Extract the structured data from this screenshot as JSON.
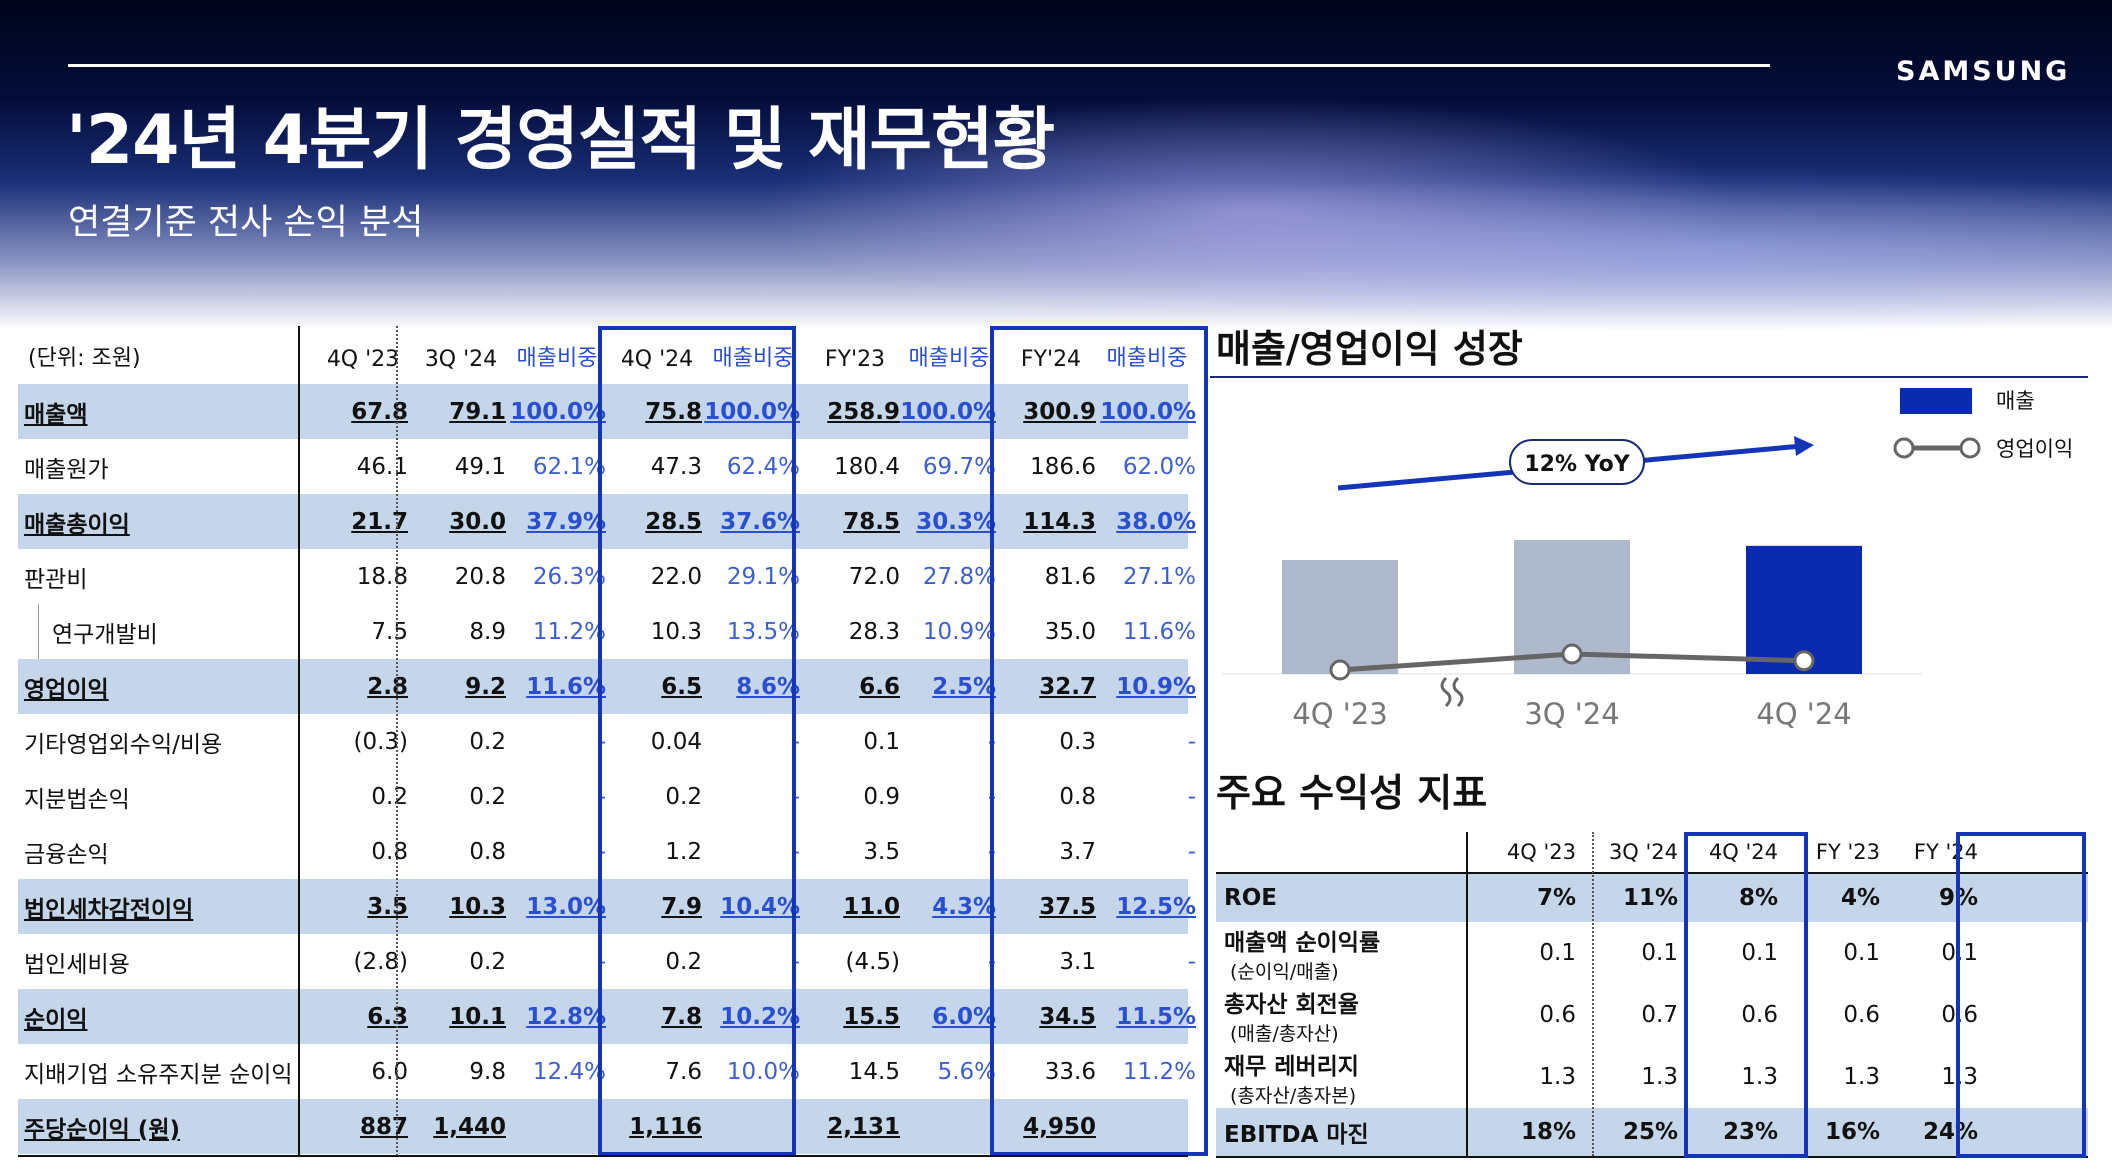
{
  "header": {
    "title": "'24년 4분기 경영실적 및 재무현황",
    "subtitle": "연결기준 전사 손익 분석",
    "logo": "SAMSUNG"
  },
  "main_table": {
    "unit_label": "(단위: 조원)",
    "columns": [
      "4Q '23",
      "3Q '24",
      "매출비중",
      "4Q '24",
      "매출비중",
      "FY'23",
      "매출비중",
      "FY'24",
      "매출비중"
    ],
    "rows": [
      {
        "label": "매출액",
        "highlight": true,
        "values": [
          "67.8",
          "79.1",
          "100.0%",
          "75.8",
          "100.0%",
          "258.9",
          "100.0%",
          "300.9",
          "100.0%"
        ]
      },
      {
        "label": "매출원가",
        "highlight": false,
        "values": [
          "46.1",
          "49.1",
          "62.1%",
          "47.3",
          "62.4%",
          "180.4",
          "69.7%",
          "186.6",
          "62.0%"
        ]
      },
      {
        "label": "매출총이익",
        "highlight": true,
        "values": [
          "21.7",
          "30.0",
          "37.9%",
          "28.5",
          "37.6%",
          "78.5",
          "30.3%",
          "114.3",
          "38.0%"
        ]
      },
      {
        "label": "판관비",
        "highlight": false,
        "values": [
          "18.8",
          "20.8",
          "26.3%",
          "22.0",
          "29.1%",
          "72.0",
          "27.8%",
          "81.6",
          "27.1%"
        ]
      },
      {
        "label": "연구개발비",
        "highlight": false,
        "sub": true,
        "values": [
          "7.5",
          "8.9",
          "11.2%",
          "10.3",
          "13.5%",
          "28.3",
          "10.9%",
          "35.0",
          "11.6%"
        ]
      },
      {
        "label": "영업이익",
        "highlight": true,
        "values": [
          "2.8",
          "9.2",
          "11.6%",
          "6.5",
          "8.6%",
          "6.6",
          "2.5%",
          "32.7",
          "10.9%"
        ]
      },
      {
        "label": "기타영업외수익/비용",
        "highlight": false,
        "values": [
          "(0.3)",
          "0.2",
          "-",
          "0.04",
          "-",
          "0.1",
          "-",
          "0.3",
          "-"
        ]
      },
      {
        "label": "지분법손익",
        "highlight": false,
        "values": [
          "0.2",
          "0.2",
          "-",
          "0.2",
          "-",
          "0.9",
          "-",
          "0.8",
          "-"
        ]
      },
      {
        "label": "금융손익",
        "highlight": false,
        "values": [
          "0.8",
          "0.8",
          "-",
          "1.2",
          "-",
          "3.5",
          "-",
          "3.7",
          "-"
        ]
      },
      {
        "label": "법인세차감전이익",
        "highlight": true,
        "values": [
          "3.5",
          "10.3",
          "13.0%",
          "7.9",
          "10.4%",
          "11.0",
          "4.3%",
          "37.5",
          "12.5%"
        ]
      },
      {
        "label": "법인세비용",
        "highlight": false,
        "values": [
          "(2.8)",
          "0.2",
          "-",
          "0.2",
          "-",
          "(4.5)",
          "-",
          "3.1",
          "-"
        ]
      },
      {
        "label": "순이익",
        "highlight": true,
        "values": [
          "6.3",
          "10.1",
          "12.8%",
          "7.8",
          "10.2%",
          "15.5",
          "6.0%",
          "34.5",
          "11.5%"
        ]
      },
      {
        "label": "지배기업 소유주지분 순이익",
        "highlight": false,
        "values": [
          "6.0",
          "9.8",
          "12.4%",
          "7.6",
          "10.0%",
          "14.5",
          "5.6%",
          "33.6",
          "11.2%"
        ]
      },
      {
        "label": "주당순이익 (원)",
        "highlight": true,
        "values": [
          "887",
          "1,440",
          "",
          "1,116",
          "",
          "2,131",
          "",
          "4,950",
          ""
        ]
      }
    ]
  },
  "growth_chart": {
    "section_title": "매출/영업이익 성장",
    "yoy_label": "12% YoY",
    "legend": {
      "revenue": "매출",
      "op_profit": "영업이익"
    },
    "colors": {
      "bar_past": "#aeb9cc",
      "bar_current": "#0a2bb0",
      "line": "#666666",
      "arrow": "#1535b8"
    }
  },
  "chart_data": {
    "type": "bar",
    "categories": [
      "4Q '23",
      "3Q '24",
      "4Q '24"
    ],
    "series": [
      {
        "name": "매출",
        "values": [
          67.8,
          79.1,
          75.8
        ]
      },
      {
        "name": "영업이익",
        "values": [
          2.8,
          9.2,
          6.5
        ]
      }
    ],
    "axis_break_between": [
      "4Q '23",
      "3Q '24"
    ],
    "annotation": "12% YoY",
    "legend_position": "top-right",
    "grid": false
  },
  "profit_table": {
    "section_title": "주요 수익성 지표",
    "columns": [
      "4Q '23",
      "3Q '24",
      "4Q '24",
      "FY '23",
      "FY '24"
    ],
    "rows": [
      {
        "label": "ROE",
        "sublabel": "",
        "highlight": true,
        "values": [
          "7%",
          "11%",
          "8%",
          "4%",
          "9%"
        ]
      },
      {
        "label": "매출액 순이익률",
        "sublabel": "(순이익/매출)",
        "highlight": false,
        "values": [
          "0.1",
          "0.1",
          "0.1",
          "0.1",
          "0.1"
        ]
      },
      {
        "label": "총자산 회전율",
        "sublabel": "(매출/총자산)",
        "highlight": false,
        "values": [
          "0.6",
          "0.7",
          "0.6",
          "0.6",
          "0.6"
        ]
      },
      {
        "label": "재무 레버리지",
        "sublabel": "(총자산/총자본)",
        "highlight": false,
        "values": [
          "1.3",
          "1.3",
          "1.3",
          "1.3",
          "1.3"
        ]
      },
      {
        "label": "EBITDA 마진",
        "sublabel": "",
        "highlight": true,
        "values": [
          "18%",
          "25%",
          "23%",
          "16%",
          "24%"
        ]
      }
    ]
  }
}
